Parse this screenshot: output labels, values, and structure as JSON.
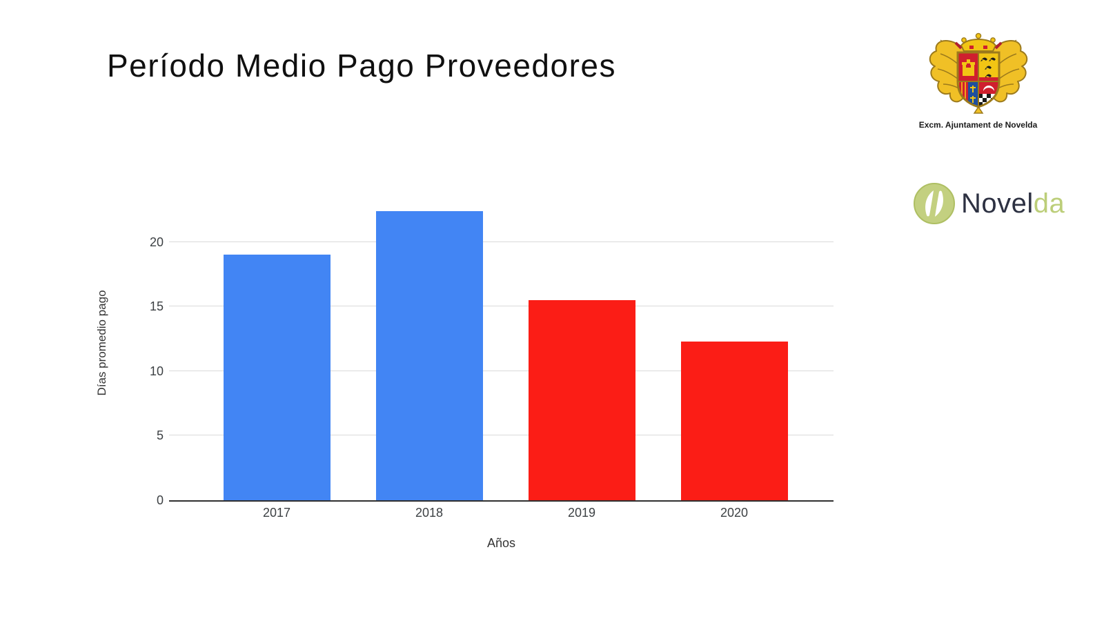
{
  "slide": {
    "title": "Período Medio Pago Proveedores"
  },
  "header": {
    "crest_caption": "Excm. Ajuntament de Novelda",
    "crest_icon": "novelda-coat-of-arms",
    "logo": {
      "icon": "novelda-leaf-n",
      "text_dark": "Novel",
      "text_green": "da",
      "green": "#bcce79",
      "navy": "#2d3142"
    }
  },
  "chart_data": {
    "type": "bar",
    "categories": [
      "2017",
      "2018",
      "2019",
      "2020"
    ],
    "values": [
      19.0,
      22.4,
      15.5,
      12.3
    ],
    "bar_colors": [
      "#4285f4",
      "#4285f4",
      "#fb1d16",
      "#fb1d16"
    ],
    "title": "",
    "xlabel": "Años",
    "ylabel": "Días promedio pago",
    "yticks": [
      0,
      5,
      10,
      15,
      20
    ],
    "ylim": [
      0,
      24.3
    ],
    "grid": true,
    "legend": "none",
    "gridline_color": "#d9d9d9",
    "baseline_color": "#2f2f2f",
    "tick_text_color": "#3c4043"
  }
}
